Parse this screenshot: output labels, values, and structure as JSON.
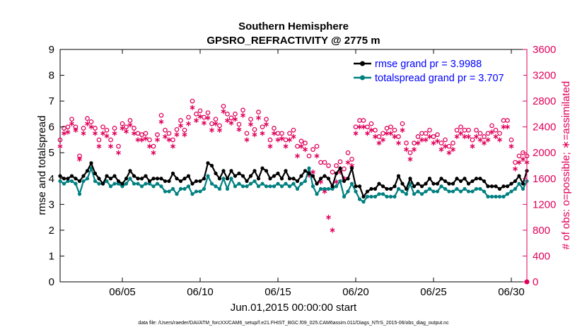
{
  "chart_data": {
    "type": "line",
    "title": "Southern Hemisphere",
    "subtitle": "GPSRO_REFRACTIVITY @ 2775 m",
    "xlabel": "Jun.01,2015 00:00:00 start",
    "ylabel": "rmse and totalspread",
    "y2label": "# of obs: o=possible; ∗=assimilated",
    "xlim": [
      1,
      31
    ],
    "ylim": [
      0,
      9
    ],
    "y2lim": [
      0,
      3600
    ],
    "xticks": [
      5,
      10,
      15,
      20,
      25,
      30
    ],
    "xtick_labels": [
      "06/05",
      "06/10",
      "06/15",
      "06/20",
      "06/25",
      "06/30"
    ],
    "yticks": [
      0,
      1,
      2,
      3,
      4,
      5,
      6,
      7,
      8,
      9
    ],
    "y2ticks": [
      0,
      400,
      800,
      1200,
      1600,
      2000,
      2400,
      2800,
      3200,
      3600
    ],
    "footer": "data file: /Users/raeder/DAI/ATM_forcXX/CAM6_setup/f.e21.FHIST_BGC.f09_025.CAM6assim.011/Diags_NTrS_2015-06/obs_diag_output.nc",
    "colors": {
      "rmse": "#000000",
      "spread": "#008080",
      "obs": "#e0005a",
      "legend_text": "#0000ff"
    },
    "legend": {
      "position": "top-right",
      "entries": [
        "rmse grand pr = 3.9988",
        "totalspread grand pr = 3.707"
      ]
    },
    "series": [
      {
        "name": "rmse grand pr = 3.9988",
        "axis": "left",
        "x": [
          1.0,
          1.25,
          1.5,
          1.75,
          2.0,
          2.25,
          2.5,
          2.75,
          3.0,
          3.25,
          3.5,
          3.75,
          4.0,
          4.25,
          4.5,
          4.75,
          5.0,
          5.25,
          5.5,
          5.75,
          6.0,
          6.25,
          6.5,
          6.75,
          7.0,
          7.25,
          7.5,
          7.75,
          8.0,
          8.25,
          8.5,
          8.75,
          9.0,
          9.25,
          9.5,
          9.75,
          10.0,
          10.25,
          10.5,
          10.75,
          11.0,
          11.25,
          11.5,
          11.75,
          12.0,
          12.25,
          12.5,
          12.75,
          13.0,
          13.25,
          13.5,
          13.75,
          14.0,
          14.25,
          14.5,
          14.75,
          15.0,
          15.25,
          15.5,
          15.75,
          16.0,
          16.25,
          16.5,
          16.75,
          17.0,
          17.25,
          17.5,
          17.75,
          18.0,
          18.25,
          18.5,
          18.75,
          19.0,
          19.25,
          19.5,
          19.75,
          20.0,
          20.25,
          20.5,
          20.75,
          21.0,
          21.25,
          21.5,
          21.75,
          22.0,
          22.25,
          22.5,
          22.75,
          23.0,
          23.25,
          23.5,
          23.75,
          24.0,
          24.25,
          24.5,
          24.75,
          25.0,
          25.25,
          25.5,
          25.75,
          26.0,
          26.25,
          26.5,
          26.75,
          27.0,
          27.25,
          27.5,
          27.75,
          28.0,
          28.25,
          28.5,
          28.75,
          29.0,
          29.25,
          29.5,
          29.75,
          30.0,
          30.25,
          30.5,
          30.75,
          31.0
        ],
        "values": [
          4.1,
          4.0,
          4.0,
          4.1,
          4.0,
          3.9,
          4.1,
          4.3,
          4.6,
          4.2,
          4.0,
          3.8,
          4.1,
          4.0,
          4.1,
          3.9,
          3.8,
          4.0,
          4.3,
          4.1,
          4.0,
          4.0,
          4.1,
          3.9,
          4.0,
          4.0,
          4.0,
          3.9,
          3.9,
          4.2,
          4.0,
          3.9,
          4.0,
          4.1,
          3.8,
          3.9,
          3.9,
          4.0,
          4.6,
          4.5,
          4.2,
          4.0,
          4.3,
          4.0,
          4.3,
          4.1,
          4.2,
          4.1,
          3.9,
          4.1,
          4.3,
          4.0,
          4.4,
          4.3,
          4.0,
          4.1,
          4.2,
          4.0,
          4.3,
          4.0,
          4.0,
          3.9,
          4.1,
          4.3,
          4.2,
          4.1,
          3.8,
          4.0,
          4.1,
          4.0,
          3.7,
          4.2,
          4.4,
          3.9,
          4.0,
          4.4,
          3.7,
          3.7,
          3.3,
          3.5,
          3.6,
          3.6,
          3.8,
          3.7,
          3.6,
          3.6,
          3.7,
          4.1,
          3.8,
          3.6,
          4.0,
          3.7,
          3.8,
          3.7,
          3.8,
          4.0,
          3.8,
          3.8,
          4.0,
          3.9,
          3.8,
          3.8,
          4.0,
          3.9,
          4.0,
          3.8,
          3.9,
          4.0,
          4.0,
          3.9,
          3.7,
          3.7,
          3.7,
          3.6,
          3.7,
          3.7,
          3.8,
          3.9,
          4.1,
          3.8,
          4.3
        ]
      },
      {
        "name": "totalspread grand pr = 3.707",
        "axis": "left",
        "x": [
          1.0,
          1.25,
          1.5,
          1.75,
          2.0,
          2.25,
          2.5,
          2.75,
          3.0,
          3.25,
          3.5,
          3.75,
          4.0,
          4.25,
          4.5,
          4.75,
          5.0,
          5.25,
          5.5,
          5.75,
          6.0,
          6.25,
          6.5,
          6.75,
          7.0,
          7.25,
          7.5,
          7.75,
          8.0,
          8.25,
          8.5,
          8.75,
          9.0,
          9.25,
          9.5,
          9.75,
          10.0,
          10.25,
          10.5,
          10.75,
          11.0,
          11.25,
          11.5,
          11.75,
          12.0,
          12.25,
          12.5,
          12.75,
          13.0,
          13.25,
          13.5,
          13.75,
          14.0,
          14.25,
          14.5,
          14.75,
          15.0,
          15.25,
          15.5,
          15.75,
          16.0,
          16.25,
          16.5,
          16.75,
          17.0,
          17.25,
          17.5,
          17.75,
          18.0,
          18.25,
          18.5,
          18.75,
          19.0,
          19.25,
          19.5,
          19.75,
          20.0,
          20.25,
          20.5,
          20.75,
          21.0,
          21.25,
          21.5,
          21.75,
          22.0,
          22.25,
          22.5,
          22.75,
          23.0,
          23.25,
          23.5,
          23.75,
          24.0,
          24.25,
          24.5,
          24.75,
          25.0,
          25.25,
          25.5,
          25.75,
          26.0,
          26.25,
          26.5,
          26.75,
          27.0,
          27.25,
          27.5,
          27.75,
          28.0,
          28.25,
          28.5,
          28.75,
          29.0,
          29.25,
          29.5,
          29.75,
          30.0,
          30.25,
          30.5,
          30.75,
          31.0
        ],
        "values": [
          3.9,
          3.8,
          3.9,
          3.9,
          3.8,
          3.4,
          3.9,
          4.0,
          4.4,
          3.9,
          3.8,
          3.8,
          3.9,
          3.7,
          3.8,
          3.8,
          3.7,
          3.8,
          4.0,
          3.8,
          3.8,
          3.7,
          3.8,
          3.8,
          3.7,
          3.8,
          3.7,
          3.5,
          3.5,
          3.6,
          3.4,
          3.6,
          3.6,
          3.7,
          3.4,
          3.5,
          3.5,
          3.6,
          4.1,
          3.8,
          3.7,
          3.6,
          4.0,
          3.6,
          4.0,
          3.7,
          3.8,
          3.7,
          3.7,
          3.8,
          3.9,
          3.7,
          3.8,
          3.7,
          3.7,
          3.7,
          3.8,
          3.7,
          3.8,
          3.7,
          3.8,
          3.6,
          3.8,
          3.9,
          4.4,
          3.7,
          3.4,
          3.6,
          3.6,
          3.6,
          3.6,
          3.7,
          3.9,
          3.3,
          3.5,
          3.8,
          3.5,
          3.2,
          3.1,
          3.3,
          3.3,
          3.3,
          3.4,
          3.4,
          3.3,
          3.3,
          3.3,
          3.6,
          3.5,
          3.4,
          3.8,
          3.4,
          3.5,
          3.4,
          3.5,
          3.6,
          3.5,
          3.5,
          3.7,
          3.6,
          3.5,
          3.5,
          3.6,
          3.5,
          3.6,
          3.5,
          3.5,
          3.6,
          3.6,
          3.5,
          3.3,
          3.3,
          3.3,
          3.3,
          3.3,
          3.4,
          3.5,
          3.6,
          3.8,
          3.6,
          3.9
        ]
      },
      {
        "name": "possible",
        "axis": "right",
        "marker": "o",
        "x": [
          1.0,
          1.25,
          1.5,
          1.75,
          2.0,
          2.25,
          2.5,
          2.75,
          3.0,
          3.25,
          3.5,
          3.75,
          4.0,
          4.25,
          4.5,
          4.75,
          5.0,
          5.25,
          5.5,
          5.75,
          6.0,
          6.25,
          6.5,
          6.75,
          7.0,
          7.25,
          7.5,
          7.75,
          8.0,
          8.25,
          8.5,
          8.75,
          9.0,
          9.25,
          9.5,
          9.75,
          10.0,
          10.25,
          10.5,
          10.75,
          11.0,
          11.25,
          11.5,
          11.75,
          12.0,
          12.25,
          12.5,
          12.75,
          13.0,
          13.25,
          13.5,
          13.75,
          14.0,
          14.25,
          14.5,
          14.75,
          15.0,
          15.25,
          15.5,
          15.75,
          16.0,
          16.25,
          16.5,
          16.75,
          17.0,
          17.25,
          17.5,
          17.75,
          18.0,
          18.25,
          18.5,
          18.75,
          19.0,
          19.25,
          19.5,
          19.75,
          20.0,
          20.25,
          20.5,
          20.75,
          21.0,
          21.25,
          21.5,
          21.75,
          22.0,
          22.25,
          22.5,
          22.75,
          23.0,
          23.25,
          23.5,
          23.75,
          24.0,
          24.25,
          24.5,
          24.75,
          25.0,
          25.25,
          25.5,
          25.75,
          26.0,
          26.25,
          26.5,
          26.75,
          27.0,
          27.25,
          27.5,
          27.75,
          28.0,
          28.25,
          28.5,
          28.75,
          29.0,
          29.25,
          29.5,
          29.75,
          30.0,
          30.25,
          30.5,
          30.75,
          31.0
        ],
        "values": [
          2200,
          2380,
          2400,
          2520,
          2400,
          1950,
          2380,
          2530,
          2480,
          2380,
          2200,
          2400,
          2350,
          2200,
          2380,
          2100,
          2450,
          2400,
          2500,
          2380,
          2300,
          2280,
          2300,
          2200,
          2100,
          2280,
          2580,
          2350,
          2300,
          2200,
          2360,
          2500,
          2350,
          2550,
          2800,
          2600,
          2650,
          2550,
          2620,
          2450,
          2520,
          2420,
          2720,
          2600,
          2540,
          2600,
          2440,
          2660,
          2300,
          2520,
          2360,
          2630,
          2400,
          2520,
          2200,
          2380,
          2300,
          2300,
          2200,
          2300,
          2350,
          2100,
          2180,
          2150,
          1950,
          2050,
          2100,
          1850,
          1850,
          1800,
          1700,
          1800,
          1860,
          1750,
          2000,
          1900,
          2400,
          2500,
          2500,
          2400,
          2450,
          2350,
          2250,
          2300,
          2380,
          2400,
          2350,
          2250,
          2450,
          2150,
          2000,
          2150,
          2250,
          2300,
          2300,
          2350,
          2250,
          2280,
          2150,
          2200,
          2100,
          2150,
          2350,
          2400,
          2350,
          2350,
          2200,
          2350,
          2300,
          2250,
          2300,
          2420,
          2350,
          2300,
          2500,
          2500,
          2200,
          1850,
          1950,
          2000,
          1950
        ]
      },
      {
        "name": "assimilated",
        "axis": "right",
        "marker": "*",
        "x": [
          1.0,
          1.25,
          1.5,
          1.75,
          2.0,
          2.25,
          2.5,
          2.75,
          3.0,
          3.25,
          3.5,
          3.75,
          4.0,
          4.25,
          4.5,
          4.75,
          5.0,
          5.25,
          5.5,
          5.75,
          6.0,
          6.25,
          6.5,
          6.75,
          7.0,
          7.25,
          7.5,
          7.75,
          8.0,
          8.25,
          8.5,
          8.75,
          9.0,
          9.25,
          9.5,
          9.75,
          10.0,
          10.25,
          10.5,
          10.75,
          11.0,
          11.25,
          11.5,
          11.75,
          12.0,
          12.25,
          12.5,
          12.75,
          13.0,
          13.25,
          13.5,
          13.75,
          14.0,
          14.25,
          14.5,
          14.75,
          15.0,
          15.25,
          15.5,
          15.75,
          16.0,
          16.25,
          16.5,
          16.75,
          17.0,
          17.25,
          17.5,
          17.75,
          18.0,
          18.25,
          18.5,
          18.75,
          19.0,
          19.25,
          19.5,
          19.75,
          20.0,
          20.25,
          20.5,
          20.75,
          21.0,
          21.25,
          21.5,
          21.75,
          22.0,
          22.25,
          22.5,
          22.75,
          23.0,
          23.25,
          23.5,
          23.75,
          24.0,
          24.25,
          24.5,
          24.75,
          25.0,
          25.25,
          25.5,
          25.75,
          26.0,
          26.25,
          26.5,
          26.75,
          27.0,
          27.25,
          27.5,
          27.75,
          28.0,
          28.25,
          28.5,
          28.75,
          29.0,
          29.25,
          29.5,
          29.75,
          30.0,
          30.25,
          30.5,
          30.75,
          31.0
        ],
        "values": [
          2100,
          2300,
          2320,
          2450,
          2350,
          1900,
          2300,
          2450,
          2400,
          2300,
          2100,
          2300,
          2260,
          2100,
          2300,
          2000,
          2380,
          2330,
          2430,
          2300,
          2200,
          2200,
          2220,
          2100,
          2000,
          2200,
          2480,
          2250,
          2200,
          2100,
          2280,
          2420,
          2280,
          2450,
          2700,
          2500,
          2560,
          2460,
          2540,
          2350,
          2450,
          2350,
          2640,
          2500,
          2460,
          2520,
          2360,
          2580,
          2200,
          2440,
          2280,
          2540,
          2300,
          2440,
          2100,
          2300,
          2200,
          2220,
          2100,
          2200,
          2250,
          1950,
          2100,
          2050,
          1650,
          1700,
          1950,
          1550,
          1400,
          1000,
          800,
          1550,
          1700,
          1600,
          1850,
          1800,
          2300,
          2400,
          2400,
          2300,
          2350,
          2250,
          2150,
          2200,
          2300,
          2300,
          2250,
          2150,
          2350,
          2050,
          1900,
          2050,
          2150,
          2200,
          2200,
          2250,
          2150,
          2180,
          2050,
          2100,
          2000,
          2050,
          2250,
          2300,
          2250,
          2250,
          2100,
          2250,
          2200,
          2150,
          2200,
          2320,
          2250,
          2200,
          2400,
          2400,
          2100,
          1750,
          1850,
          1900,
          1850
        ]
      }
    ]
  }
}
